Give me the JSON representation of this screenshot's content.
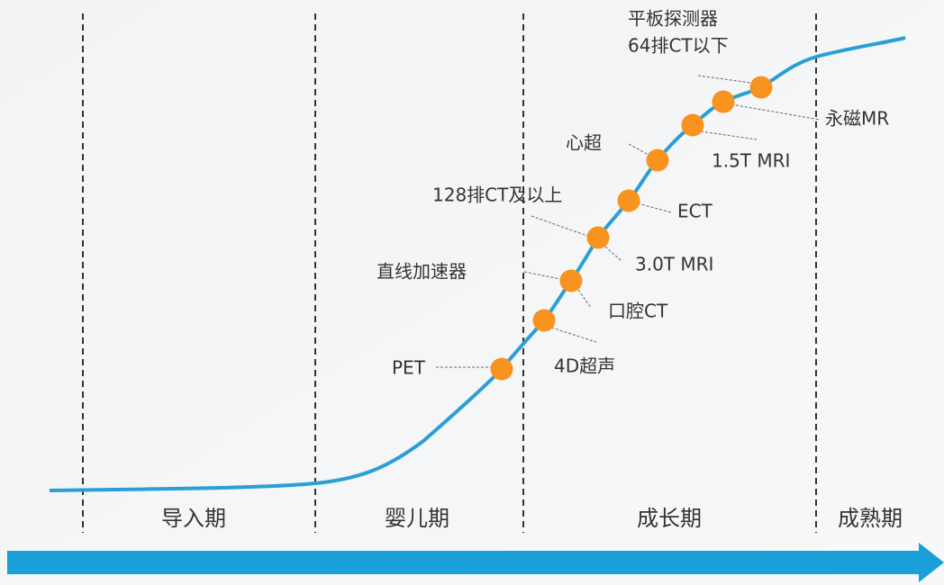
{
  "phases": [
    "导入期",
    "婴儿期",
    "成长期",
    "成熟期"
  ],
  "devices": [
    {
      "lines": [
        "PET"
      ]
    },
    {
      "lines": [
        "4D超声"
      ]
    },
    {
      "lines": [
        "直线加速器"
      ]
    },
    {
      "lines": [
        "口腔CT"
      ]
    },
    {
      "lines": [
        "128排CT及以上"
      ]
    },
    {
      "lines": [
        "3.0T MRI"
      ]
    },
    {
      "lines": [
        "ECT"
      ]
    },
    {
      "lines": [
        "心超"
      ]
    },
    {
      "lines": [
        "1.5T MRI"
      ]
    },
    {
      "lines": [
        "永磁MR"
      ]
    },
    {
      "lines": [
        "平板探测器",
        "64排CT以下"
      ]
    }
  ]
}
